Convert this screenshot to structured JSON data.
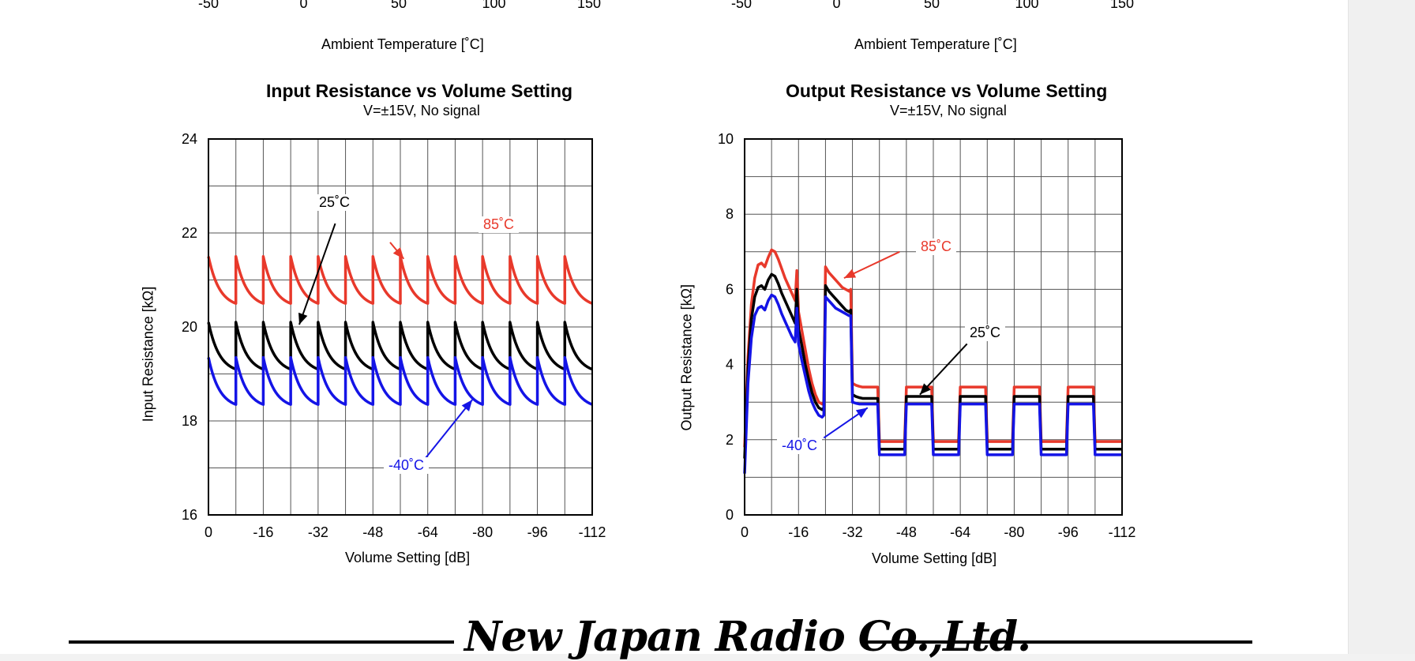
{
  "top_axes": [
    {
      "ticks": [
        "-50",
        "0",
        "50",
        "100",
        "150"
      ],
      "xlabel": "Ambient Temperature [˚C]"
    },
    {
      "ticks": [
        "-50",
        "0",
        "50",
        "100",
        "150"
      ],
      "xlabel": "Ambient Temperature [˚C]"
    }
  ],
  "chart_data": [
    {
      "type": "line",
      "title": "Input Resistance vs Volume Setting",
      "subtitle": "V=±15V, No signal",
      "xlabel": "Volume Setting [dB]",
      "ylabel": "Input Resistance  [kΩ]",
      "xlim": [
        0,
        -112
      ],
      "ylim": [
        16,
        24
      ],
      "x_ticks": [
        "0",
        "-16",
        "-32",
        "-48",
        "-64",
        "-80",
        "-96",
        "-112"
      ],
      "y_ticks": [
        "16",
        "18",
        "20",
        "22",
        "24"
      ],
      "grid": true,
      "sawtooth_period": 8,
      "series": [
        {
          "name": "85˚C",
          "color": "#e8392b",
          "high": 21.5,
          "low": 20.5
        },
        {
          "name": "25˚C",
          "color": "#000000",
          "high": 20.1,
          "low": 19.1
        },
        {
          "name": "-40˚C",
          "color": "#1414e6",
          "high": 19.35,
          "low": 18.35
        }
      ]
    },
    {
      "type": "line",
      "title": "Output Resistance vs Volume Setting",
      "subtitle": "V=±15V, No signal",
      "xlabel": "Volume Setting [dB]",
      "ylabel": "Output Resistance  [kΩ]",
      "xlim": [
        0,
        -112
      ],
      "ylim": [
        0,
        10
      ],
      "x_ticks": [
        "0",
        "-16",
        "-32",
        "-48",
        "-64",
        "-80",
        "-96",
        "-112"
      ],
      "y_ticks": [
        "0",
        "2",
        "4",
        "6",
        "8",
        "10"
      ],
      "grid": true,
      "series": [
        {
          "name": "85˚C",
          "color": "#e8392b",
          "x": [
            0,
            -1,
            -2,
            -3,
            -4,
            -5,
            -6,
            -7,
            -8,
            -9,
            -10,
            -11,
            -12,
            -13,
            -14,
            -15,
            -15.5,
            -16,
            -17,
            -18,
            -19,
            -20,
            -21,
            -22,
            -23,
            -23.5,
            -24,
            -25,
            -26,
            -27,
            -28,
            -29,
            -30,
            -31,
            -31.5,
            -32,
            -33,
            -34,
            -35,
            -36,
            -37,
            -38,
            -39,
            -39.5,
            -40,
            -47.5,
            -48,
            -55.5,
            -56,
            -63.5,
            -64,
            -71.5,
            -72,
            -79.5,
            -80,
            -87.5,
            -88,
            -95.5,
            -96,
            -103.5,
            -104,
            -112
          ],
          "y": [
            1.8,
            4.2,
            5.6,
            6.3,
            6.65,
            6.7,
            6.6,
            6.85,
            7.05,
            7.0,
            6.8,
            6.55,
            6.3,
            6.1,
            5.9,
            5.7,
            6.5,
            5.4,
            4.9,
            4.4,
            3.9,
            3.5,
            3.2,
            3.0,
            2.95,
            3.0,
            6.6,
            6.45,
            6.35,
            6.25,
            6.15,
            6.05,
            6.0,
            5.95,
            6.0,
            3.5,
            3.45,
            3.42,
            3.4,
            3.4,
            3.4,
            3.4,
            3.4,
            3.4,
            1.95,
            1.95,
            3.4,
            3.4,
            1.95,
            1.95,
            3.4,
            3.4,
            1.95,
            1.95,
            3.4,
            3.4,
            1.95,
            1.95,
            3.4,
            3.4,
            1.95,
            1.95
          ]
        },
        {
          "name": "25˚C",
          "color": "#000000",
          "x": [
            0,
            -1,
            -2,
            -3,
            -4,
            -5,
            -6,
            -7,
            -8,
            -9,
            -10,
            -11,
            -12,
            -13,
            -14,
            -15,
            -15.5,
            -16,
            -17,
            -18,
            -19,
            -20,
            -21,
            -22,
            -23,
            -23.5,
            -24,
            -25,
            -26,
            -27,
            -28,
            -29,
            -30,
            -31,
            -31.5,
            -32,
            -33,
            -34,
            -35,
            -36,
            -37,
            -38,
            -39,
            -39.5,
            -40,
            -47.5,
            -48,
            -55.5,
            -56,
            -63.5,
            -64,
            -71.5,
            -72,
            -79.5,
            -80,
            -87.5,
            -88,
            -95.5,
            -96,
            -103.5,
            -104,
            -112
          ],
          "y": [
            1.5,
            3.9,
            5.2,
            5.8,
            6.05,
            6.1,
            6.0,
            6.25,
            6.4,
            6.35,
            6.15,
            5.9,
            5.7,
            5.5,
            5.3,
            5.1,
            6.0,
            4.95,
            4.5,
            4.0,
            3.6,
            3.25,
            3.0,
            2.85,
            2.8,
            2.85,
            6.1,
            5.95,
            5.85,
            5.75,
            5.65,
            5.55,
            5.45,
            5.4,
            5.45,
            3.2,
            3.15,
            3.12,
            3.1,
            3.1,
            3.1,
            3.1,
            3.1,
            3.1,
            1.75,
            1.75,
            3.15,
            3.15,
            1.75,
            1.75,
            3.15,
            3.15,
            1.75,
            1.75,
            3.15,
            3.15,
            1.75,
            1.75,
            3.15,
            3.15,
            1.75,
            1.75
          ]
        },
        {
          "name": "-40˚C",
          "color": "#1414e6",
          "x": [
            0,
            -1,
            -2,
            -3,
            -4,
            -5,
            -6,
            -7,
            -8,
            -9,
            -10,
            -11,
            -12,
            -13,
            -14,
            -15,
            -15.5,
            -16,
            -17,
            -18,
            -19,
            -20,
            -21,
            -22,
            -23,
            -23.5,
            -24,
            -25,
            -26,
            -27,
            -28,
            -29,
            -30,
            -31,
            -31.5,
            -32,
            -33,
            -34,
            -35,
            -36,
            -37,
            -38,
            -39,
            -39.5,
            -40,
            -47.5,
            -48,
            -55.5,
            -56,
            -63.5,
            -64,
            -71.5,
            -72,
            -79.5,
            -80,
            -87.5,
            -88,
            -95.5,
            -96,
            -103.5,
            -104,
            -112
          ],
          "y": [
            1.1,
            3.5,
            4.7,
            5.3,
            5.5,
            5.55,
            5.45,
            5.7,
            5.85,
            5.8,
            5.6,
            5.35,
            5.15,
            4.95,
            4.75,
            4.6,
            5.5,
            4.55,
            4.1,
            3.7,
            3.3,
            3.0,
            2.8,
            2.65,
            2.6,
            2.65,
            5.8,
            5.7,
            5.6,
            5.5,
            5.45,
            5.4,
            5.35,
            5.3,
            5.3,
            3.0,
            2.97,
            2.95,
            2.95,
            2.95,
            2.95,
            2.95,
            2.95,
            2.95,
            1.6,
            1.6,
            2.95,
            2.95,
            1.6,
            1.6,
            2.95,
            2.95,
            1.6,
            1.6,
            2.95,
            2.95,
            1.6,
            1.6,
            2.95,
            2.95,
            1.6,
            1.6
          ]
        }
      ]
    }
  ],
  "footer": {
    "company": "New Japan Radio Co.,Ltd."
  }
}
